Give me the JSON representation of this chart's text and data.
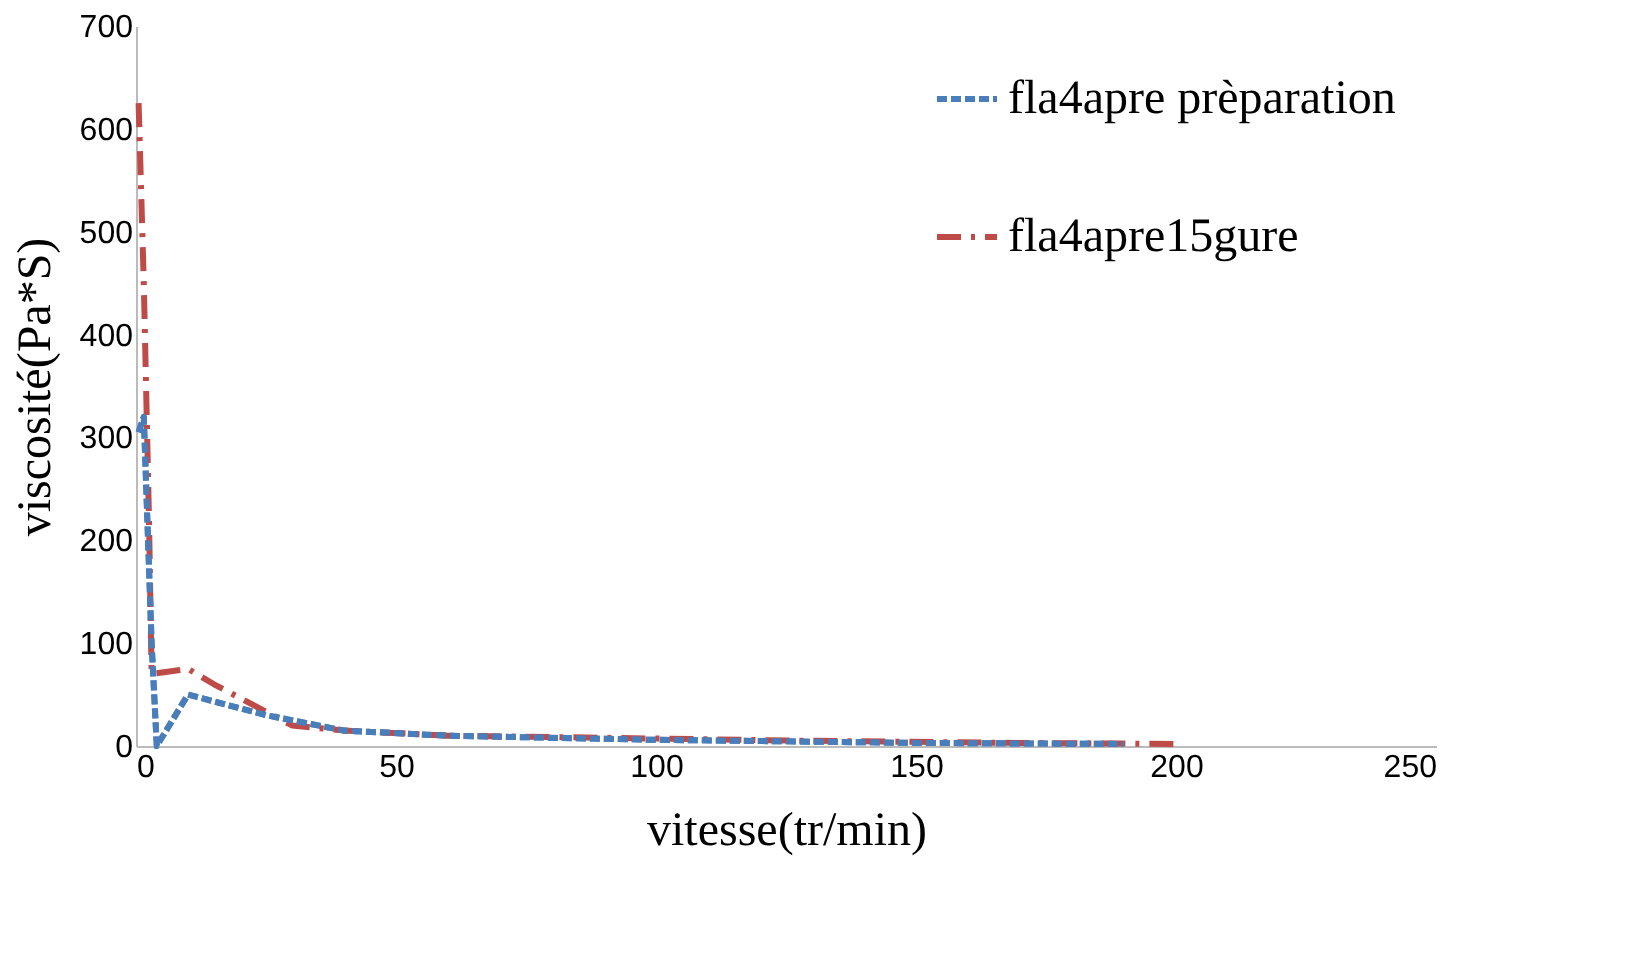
{
  "chart_data": {
    "type": "line",
    "xlabel": "vitesse(tr/min)",
    "ylabel": "viscosité(Pa*S)",
    "xlim": [
      0,
      250
    ],
    "xticks": [
      0,
      50,
      100,
      150,
      200,
      250
    ],
    "ylim": [
      0,
      700
    ],
    "yticks": [
      0,
      100,
      200,
      300,
      400,
      500,
      600,
      700
    ],
    "grid": false,
    "legend": "top right",
    "marker": "none",
    "series": [
      {
        "name": "fla4apre prèparation",
        "color": "#4a7ebb",
        "line_style": "dashed",
        "x": [
          0.5,
          1.5,
          3,
          4,
          10,
          25,
          40,
          60,
          100,
          150,
          190
        ],
        "values": [
          305,
          320,
          100,
          0,
          50,
          30,
          15,
          10,
          6,
          3,
          2
        ]
      },
      {
        "name": "fla4apre15gure",
        "color": "#be4b48",
        "line_style": "dashdot",
        "x": [
          0.5,
          1.5,
          2.5,
          3,
          10,
          15,
          30,
          40,
          60,
          90,
          130,
          170,
          200
        ],
        "values": [
          625,
          450,
          220,
          70,
          75,
          60,
          20,
          15,
          10,
          8,
          5,
          3,
          2
        ]
      }
    ]
  }
}
